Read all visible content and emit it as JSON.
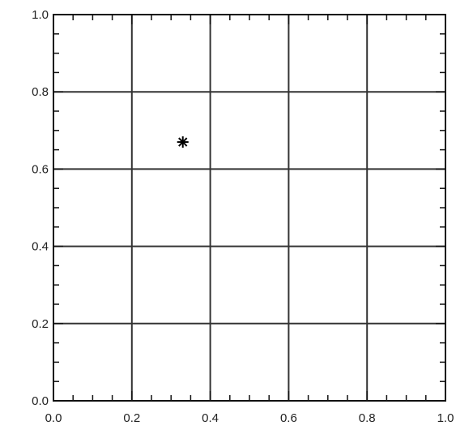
{
  "chart_data": {
    "type": "scatter",
    "title": "",
    "xlabel": "",
    "ylabel": "",
    "xlim": [
      0.0,
      1.0
    ],
    "ylim": [
      0.0,
      1.0
    ],
    "grid": true,
    "marker": "asterisk",
    "x_ticks": [
      "0.0",
      "0.2",
      "0.4",
      "0.6",
      "0.8",
      "1.0"
    ],
    "y_ticks": [
      "0.0",
      "0.2",
      "0.4",
      "0.6",
      "0.8",
      "1.0"
    ],
    "series": [
      {
        "points": [
          {
            "x": 0.33,
            "y": 0.67
          }
        ]
      }
    ],
    "colors": {
      "axis": "#111111",
      "grid": "#333333",
      "marker": "#000000"
    }
  }
}
